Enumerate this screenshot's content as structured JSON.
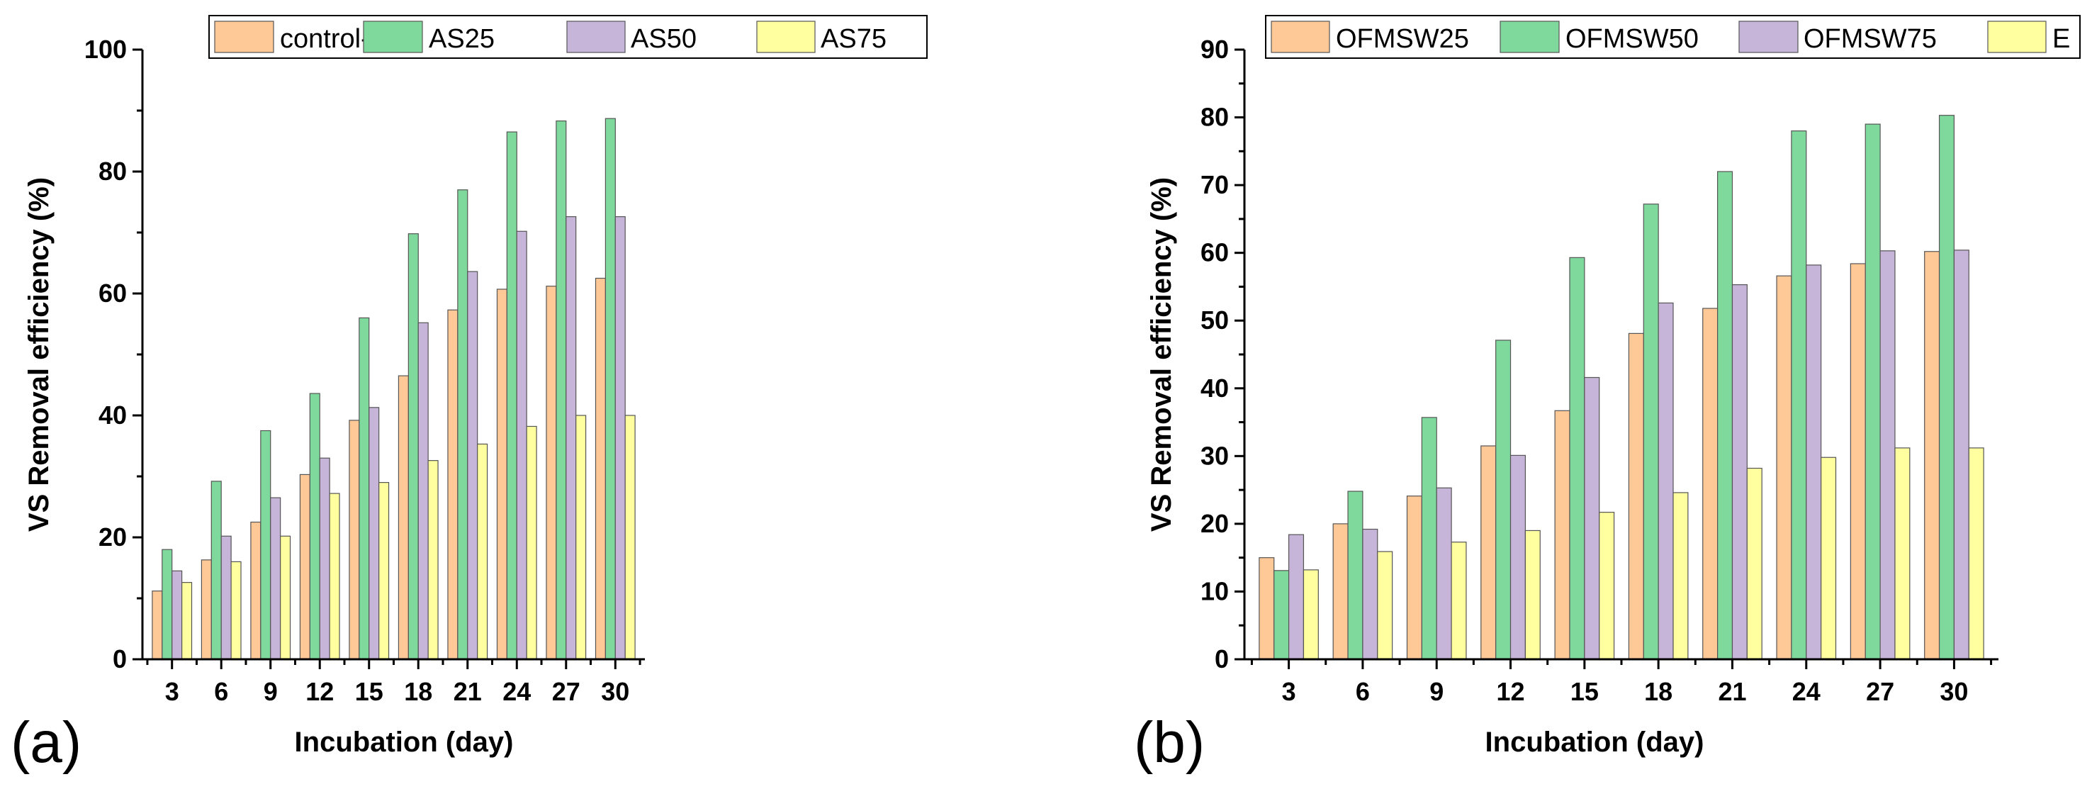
{
  "chart_data": [
    {
      "panel": "(a)",
      "type": "bar",
      "title": "",
      "xlabel": "Incubation (day)",
      "ylabel": "VS Removal efficiency (%)",
      "ylim": [
        0,
        100
      ],
      "yticks": [
        0,
        20,
        40,
        60,
        80,
        100
      ],
      "categories": [
        "3",
        "6",
        "9",
        "12",
        "15",
        "18",
        "21",
        "24",
        "27",
        "30"
      ],
      "series": [
        {
          "name": "control-AS",
          "color": "#FFC897",
          "values": [
            11.2,
            16.3,
            22.5,
            30.3,
            39.2,
            46.5,
            57.3,
            60.7,
            61.2,
            62.5
          ]
        },
        {
          "name": "AS25",
          "color": "#7FD99D",
          "values": [
            18,
            29.2,
            37.5,
            43.6,
            56,
            69.8,
            77,
            86.5,
            88.3,
            88.7
          ]
        },
        {
          "name": "AS50",
          "color": "#C7B4D9",
          "values": [
            14.5,
            20.2,
            26.5,
            33,
            41.3,
            55.2,
            63.6,
            70.2,
            72.6,
            72.6
          ]
        },
        {
          "name": "AS75",
          "color": "#FFFF9F",
          "values": [
            12.6,
            16,
            20.2,
            27.2,
            29,
            32.6,
            35.3,
            38.2,
            40,
            40
          ]
        }
      ]
    },
    {
      "panel": "(b)",
      "type": "bar",
      "title": "",
      "xlabel": "Incubation (day)",
      "ylabel": "VS Removal efficiency (%)",
      "ylim": [
        0,
        90
      ],
      "yticks": [
        0,
        10,
        20,
        30,
        40,
        50,
        60,
        70,
        80,
        90
      ],
      "categories": [
        "3",
        "6",
        "9",
        "12",
        "15",
        "18",
        "21",
        "24",
        "27",
        "30"
      ],
      "series": [
        {
          "name": "OFMSW25",
          "color": "#FFC897",
          "values": [
            15,
            20,
            24.1,
            31.5,
            36.7,
            48.1,
            51.8,
            56.6,
            58.4,
            60.2
          ]
        },
        {
          "name": "OFMSW50",
          "color": "#7FD99D",
          "values": [
            13.1,
            24.8,
            35.7,
            47.1,
            59.3,
            67.2,
            72,
            78,
            79,
            80.3
          ]
        },
        {
          "name": "OFMSW75",
          "color": "#C7B4D9",
          "values": [
            18.4,
            19.2,
            25.3,
            30.1,
            41.6,
            52.6,
            55.3,
            58.2,
            60.3,
            60.4
          ]
        },
        {
          "name": "E",
          "color": "#FFFF9F",
          "values": [
            13.2,
            15.9,
            17.3,
            19,
            21.7,
            24.6,
            28.2,
            29.8,
            31.2,
            31.2
          ]
        }
      ]
    }
  ]
}
